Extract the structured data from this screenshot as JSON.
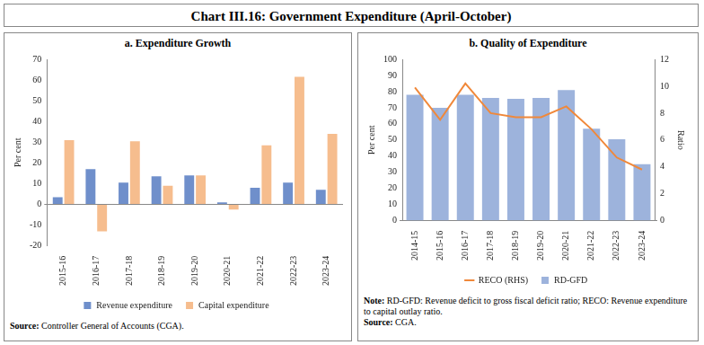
{
  "title": "Chart III.16: Government Expenditure (April-October)",
  "chart_data": [
    {
      "type": "bar",
      "title": "a. Expenditure Growth",
      "categories": [
        "2015-16",
        "2016-17",
        "2017-18",
        "2018-19",
        "2019-20",
        "2020-21",
        "2021-22",
        "2022-23",
        "2023-24"
      ],
      "series": [
        {
          "name": "Revenue expenditure",
          "color": "#6f8fcb",
          "values": [
            3.5,
            17,
            10.5,
            13.5,
            14,
            1,
            8,
            10.5,
            7
          ]
        },
        {
          "name": "Capital expenditure",
          "color": "#f6bd8e",
          "values": [
            31,
            -13,
            30.5,
            9,
            14,
            -2.5,
            28.5,
            61.5,
            34
          ]
        }
      ],
      "ylim": [
        -20,
        70
      ],
      "yticks": [
        -20,
        -10,
        0,
        10,
        20,
        30,
        40,
        50,
        60,
        70
      ],
      "y_label": "Per cent",
      "grid": false,
      "legend": "bottom",
      "notes": [
        "Source: Controller General of Accounts (CGA)."
      ]
    },
    {
      "type": "bar",
      "title": "b. Quality of Expenditure",
      "categories": [
        "2014-15",
        "2015-16",
        "2016-17",
        "2017-18",
        "2018-19",
        "2019-20",
        "2020-21",
        "2021-22",
        "2022-23",
        "2023-24"
      ],
      "series": [
        {
          "name": "RD-GFD",
          "color": "#9db3dc",
          "values": [
            78,
            70,
            78,
            76,
            75.5,
            76,
            81,
            57,
            50.5,
            35
          ]
        },
        {
          "name": "RECO (RHS)",
          "color": "#f0883a",
          "type": "line",
          "axis": "y2",
          "values": [
            9.9,
            7.5,
            10.2,
            8.0,
            7.7,
            7.7,
            8.5,
            6.8,
            4.7,
            3.8
          ]
        }
      ],
      "ylim": [
        0,
        100
      ],
      "yticks": [
        0,
        10,
        20,
        30,
        40,
        50,
        60,
        70,
        80,
        90,
        100
      ],
      "y2lim": [
        0,
        12
      ],
      "y2ticks": [
        0,
        2,
        4,
        6,
        8,
        10,
        12
      ],
      "y_label": "Per cent",
      "y2_label": "Ratio",
      "grid": false,
      "legend": "bottom",
      "notes": [
        "Note: RD-GFD: Revenue deficit to gross fiscal deficit ratio; RECO: Revenue expenditure to capital outlay ratio.",
        "Source: CGA."
      ]
    }
  ]
}
